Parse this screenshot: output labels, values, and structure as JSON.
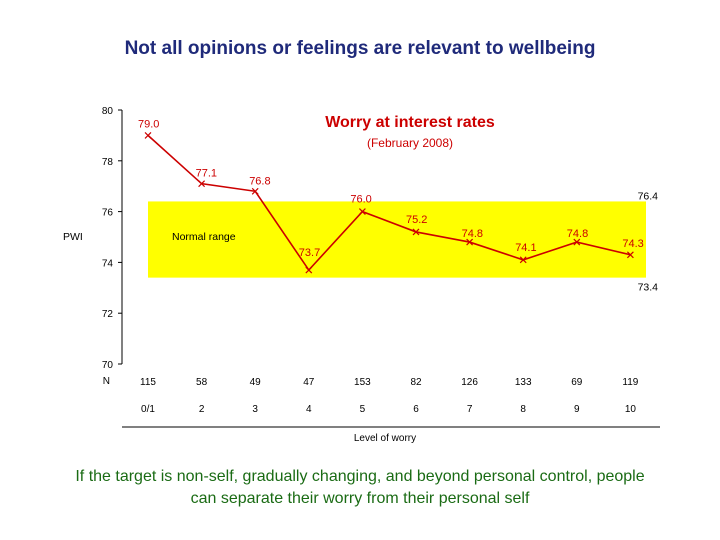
{
  "slide": {
    "title": "Not all opinions or feelings are relevant to wellbeing",
    "caption_line1": "If the target is non-self, gradually changing, and beyond personal control, people",
    "caption_line2": "can separate their worry from their personal self"
  },
  "colors": {
    "title": "#1f2a7a",
    "caption": "#1a6b14",
    "series": "#cc0000",
    "band": "#ffff00"
  },
  "chart_data": {
    "type": "line",
    "title": "Worry at interest rates",
    "subtitle": "(February 2008)",
    "ylabel": "PWI",
    "xlabel": "Level of worry",
    "ylim": [
      70,
      80
    ],
    "yticks": [
      70,
      72,
      74,
      76,
      78,
      80
    ],
    "categories": [
      "0/1",
      "2",
      "3",
      "4",
      "5",
      "6",
      "7",
      "8",
      "9",
      "10"
    ],
    "values": [
      79.0,
      77.1,
      76.8,
      73.7,
      76.0,
      75.2,
      74.8,
      74.1,
      74.8,
      74.3
    ],
    "value_labels": [
      "79.0",
      "77.1",
      "76.8",
      "73.7",
      "76.0",
      "75.2",
      "74.8",
      "74.1",
      "74.8",
      "74.3"
    ],
    "n_label": "N",
    "n_values": [
      "115",
      "58",
      "49",
      "47",
      "153",
      "82",
      "126",
      "133",
      "69",
      "119"
    ],
    "normal_range": {
      "label": "Normal range",
      "low": 73.4,
      "high": 76.4,
      "low_label": "73.4",
      "high_label": "76.4"
    }
  }
}
